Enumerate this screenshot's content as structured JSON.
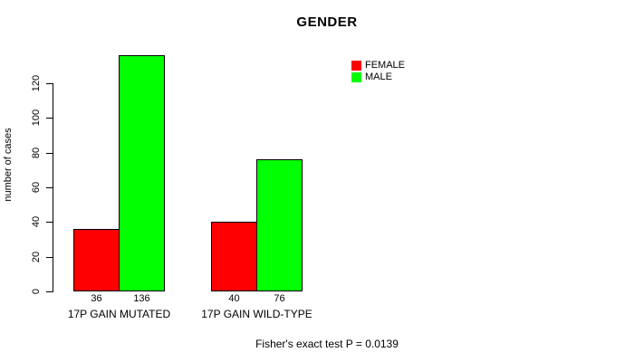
{
  "chart_data": {
    "type": "bar",
    "title": "GENDER",
    "xlabel": "",
    "ylabel": "number of cases",
    "categories": [
      "17P GAIN MUTATED",
      "17P GAIN WILD-TYPE"
    ],
    "series": [
      {
        "name": "FEMALE",
        "color": "#ff0000",
        "values": [
          36,
          40
        ]
      },
      {
        "name": "MALE",
        "color": "#00ff00",
        "values": [
          136,
          76
        ]
      }
    ],
    "bar_value_labels_shown": true,
    "yticks": [
      0,
      20,
      40,
      60,
      80,
      100,
      120
    ],
    "ylim": [
      0,
      140
    ],
    "grid": false,
    "legend_position": "top-right",
    "annotation": "Fisher's exact test P = 0.0139",
    "colors": {
      "background": "#ffffff",
      "axis": "#000000",
      "text": "#000000",
      "bar_border": "#000000"
    }
  }
}
